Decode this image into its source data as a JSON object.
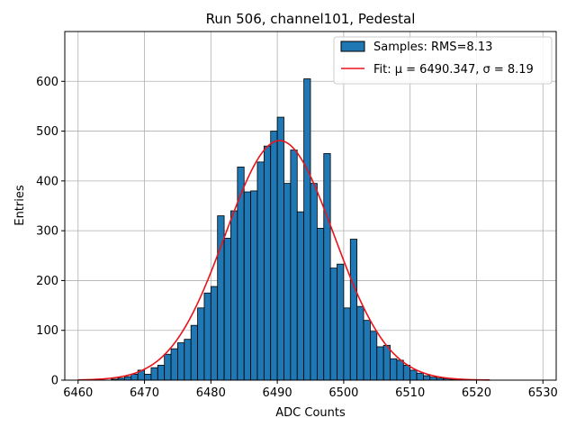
{
  "chart_data": {
    "type": "bar",
    "title": "Run 506, channel101, Pedestal",
    "xlabel": "ADC Counts",
    "ylabel": "Entries",
    "xlim": [
      6458,
      6532
    ],
    "ylim": [
      0,
      700
    ],
    "xticks": [
      "6460",
      "6470",
      "6480",
      "6490",
      "6500",
      "6510",
      "6520",
      "6530"
    ],
    "yticks": [
      "0",
      "100",
      "200",
      "300",
      "400",
      "500",
      "600"
    ],
    "grid": true,
    "legend_position": "top-right",
    "colors": {
      "bars": "#1f77b4",
      "bar_edge": "#000000",
      "fit": "#e8141c",
      "grid": "#b0b0b0"
    },
    "histogram": {
      "name": "Samples: RMS=8.13",
      "bin_edges": [
        6460,
        6461,
        6462,
        6463,
        6464,
        6465,
        6466,
        6467,
        6468,
        6469,
        6470,
        6471,
        6472,
        6473,
        6474,
        6475,
        6476,
        6477,
        6478,
        6479,
        6480,
        6481,
        6482,
        6483,
        6484,
        6485,
        6486,
        6487,
        6488,
        6489,
        6490,
        6491,
        6492,
        6493,
        6494,
        6495,
        6496,
        6497,
        6498,
        6499,
        6500,
        6501,
        6502,
        6503,
        6504,
        6505,
        6506,
        6507,
        6508,
        6509,
        6510,
        6511,
        6512,
        6513,
        6514,
        6515,
        6516,
        6517,
        6518,
        6519,
        6520,
        6521
      ],
      "counts": [
        0,
        0,
        0,
        0,
        0,
        2,
        4,
        7,
        12,
        20,
        12,
        25,
        30,
        52,
        63,
        75,
        82,
        110,
        145,
        175,
        188,
        330,
        285,
        340,
        428,
        378,
        380,
        438,
        470,
        500,
        528,
        395,
        462,
        338,
        605,
        395,
        305,
        455,
        225,
        233,
        145,
        283,
        148,
        120,
        98,
        67,
        70,
        43,
        40,
        30,
        20,
        14,
        9,
        6,
        4,
        3,
        1,
        1,
        0,
        0,
        0
      ]
    },
    "fit": {
      "name": "Fit: μ = 6490.347, σ = 8.19",
      "mu": 6490.347,
      "sigma": 8.19,
      "peak": 481,
      "x_range": [
        6460,
        6522
      ]
    }
  }
}
